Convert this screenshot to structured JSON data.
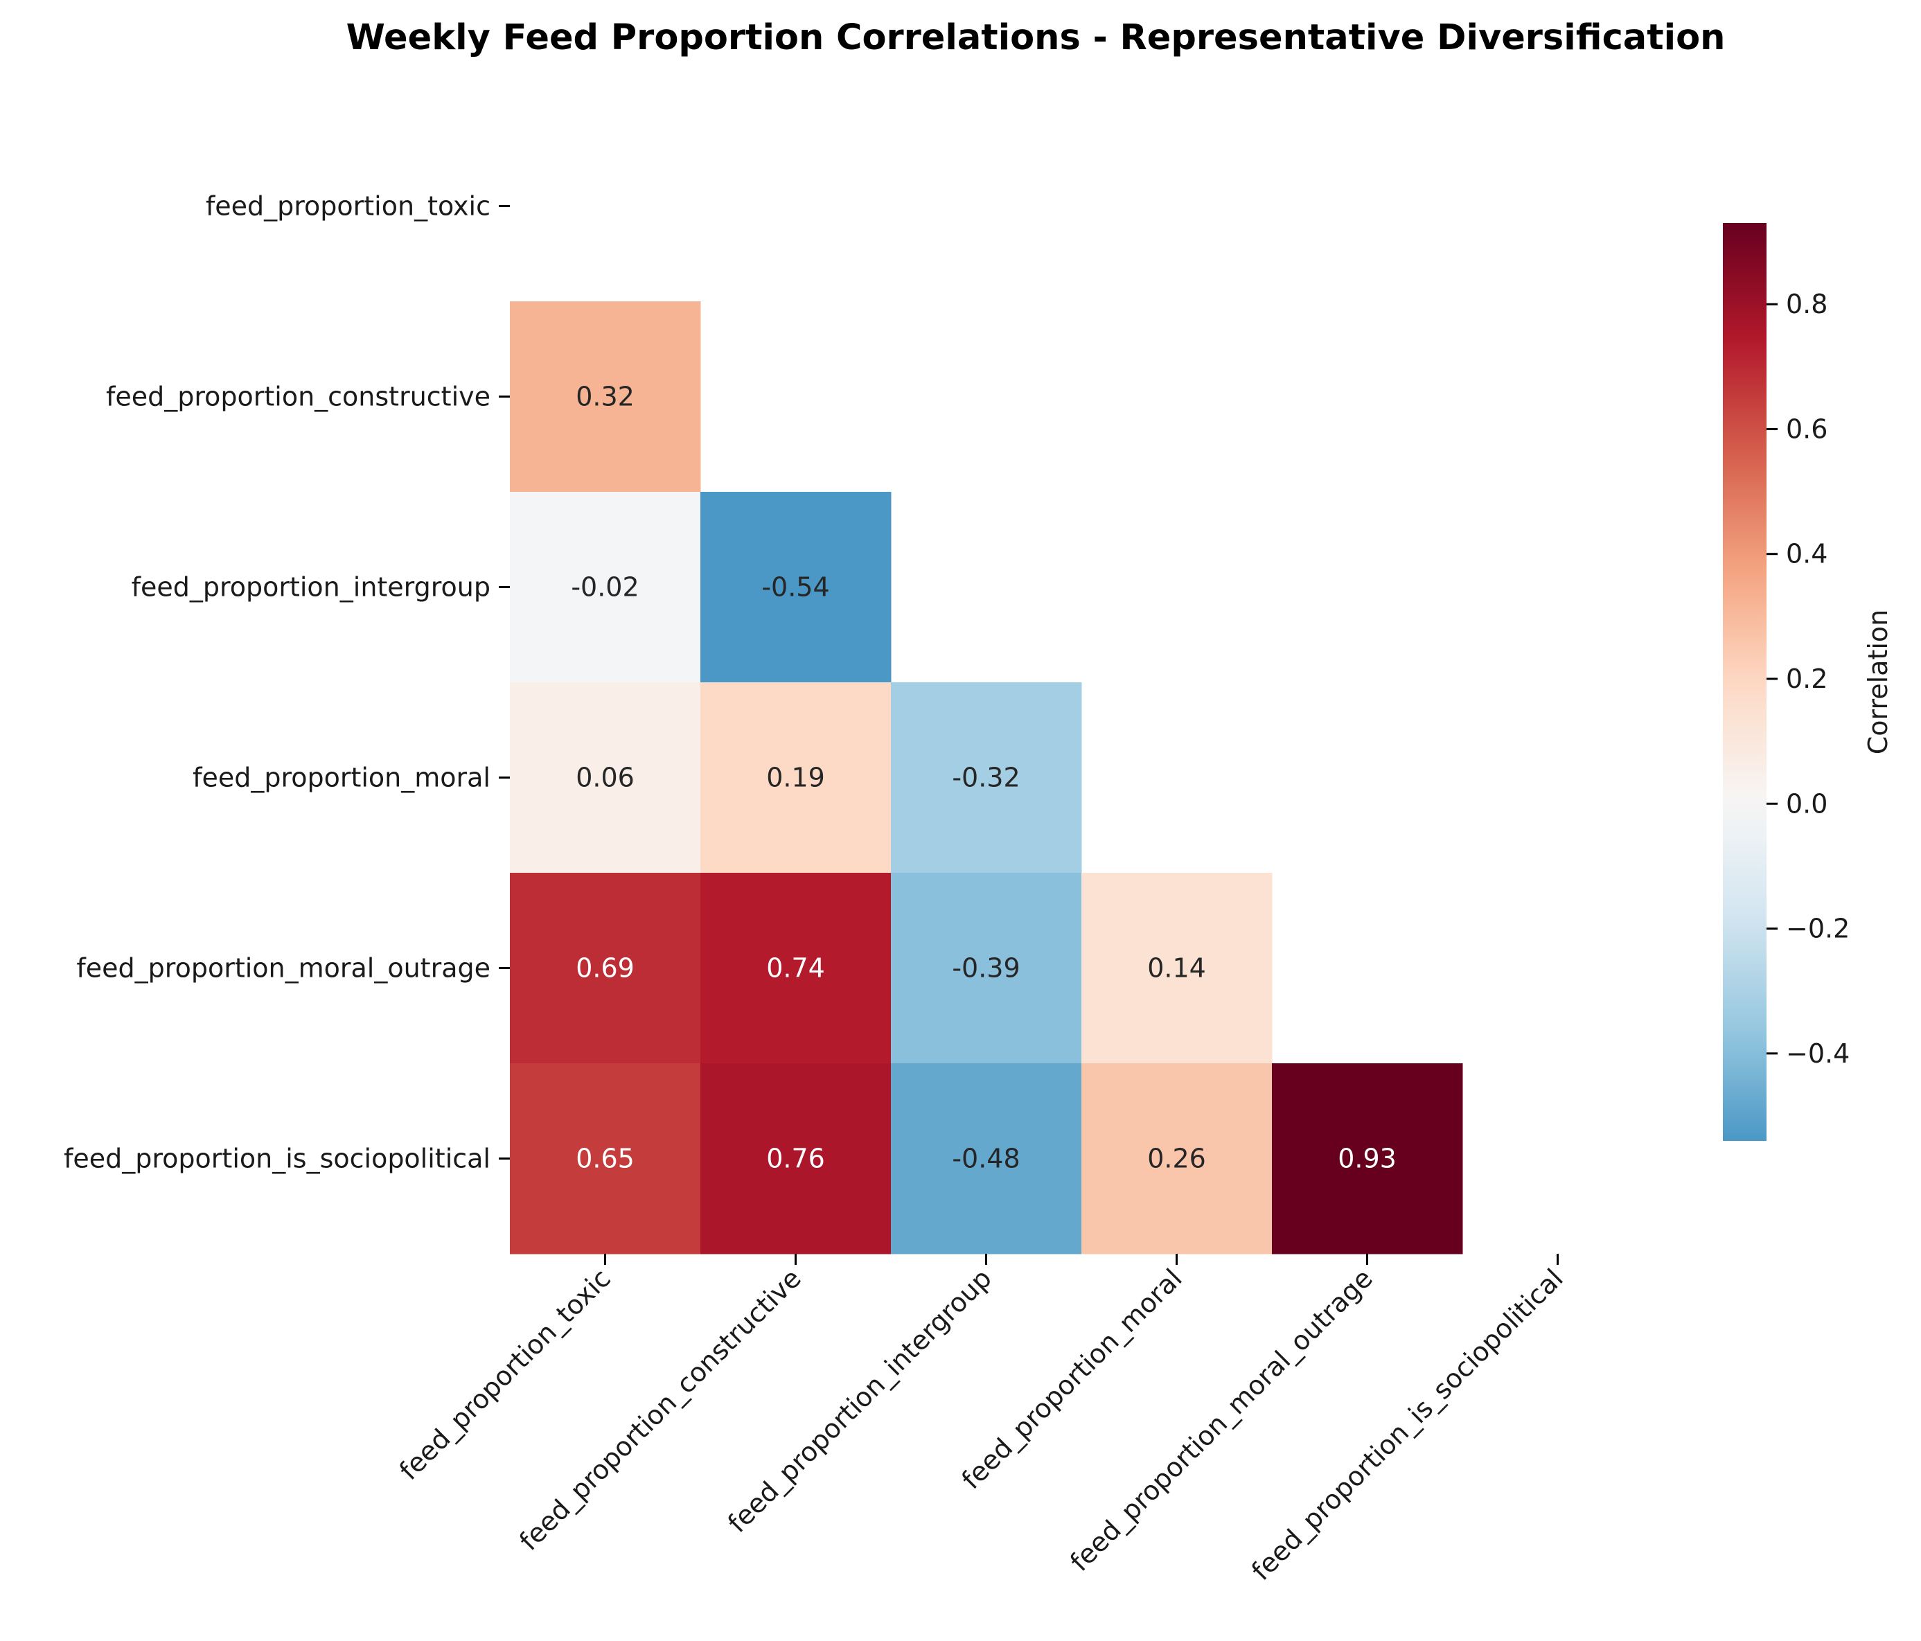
{
  "chart_data": {
    "type": "heatmap",
    "title": "Weekly Feed Proportion Correlations - Representative Diversification",
    "variables": [
      "feed_proportion_toxic",
      "feed_proportion_constructive",
      "feed_proportion_intergroup",
      "feed_proportion_moral",
      "feed_proportion_moral_outrage",
      "feed_proportion_is_sociopolitical"
    ],
    "mask": "upper-triangle-including-diagonal",
    "values": [
      [
        null,
        null,
        null,
        null,
        null,
        null
      ],
      [
        0.32,
        null,
        null,
        null,
        null,
        null
      ],
      [
        -0.02,
        -0.54,
        null,
        null,
        null,
        null
      ],
      [
        0.06,
        0.19,
        -0.32,
        null,
        null,
        null
      ],
      [
        0.69,
        0.74,
        -0.39,
        0.14,
        null,
        null
      ],
      [
        0.65,
        0.76,
        -0.48,
        0.26,
        0.93,
        null
      ]
    ],
    "value_labels": [
      [
        null,
        null,
        null,
        null,
        null,
        null
      ],
      [
        "0.32",
        null,
        null,
        null,
        null,
        null
      ],
      [
        "-0.02",
        "-0.54",
        null,
        null,
        null,
        null
      ],
      [
        "0.06",
        "0.19",
        "-0.32",
        null,
        null,
        null
      ],
      [
        "0.69",
        "0.74",
        "-0.39",
        "0.14",
        null,
        null
      ],
      [
        "0.65",
        "0.76",
        "-0.48",
        "0.26",
        "0.93",
        null
      ]
    ],
    "colormap": "RdBu_r",
    "center": 0,
    "colorbar": {
      "label": "Correlation",
      "range": [
        -0.54,
        0.93
      ],
      "ticks": [
        -0.4,
        -0.2,
        0.0,
        0.2,
        0.4,
        0.6,
        0.8
      ],
      "tick_labels": [
        "−0.4",
        "−0.2",
        "0.0",
        "0.2",
        "0.4",
        "0.6",
        "0.8"
      ]
    },
    "grid": false,
    "legend": "colorbar-right"
  }
}
